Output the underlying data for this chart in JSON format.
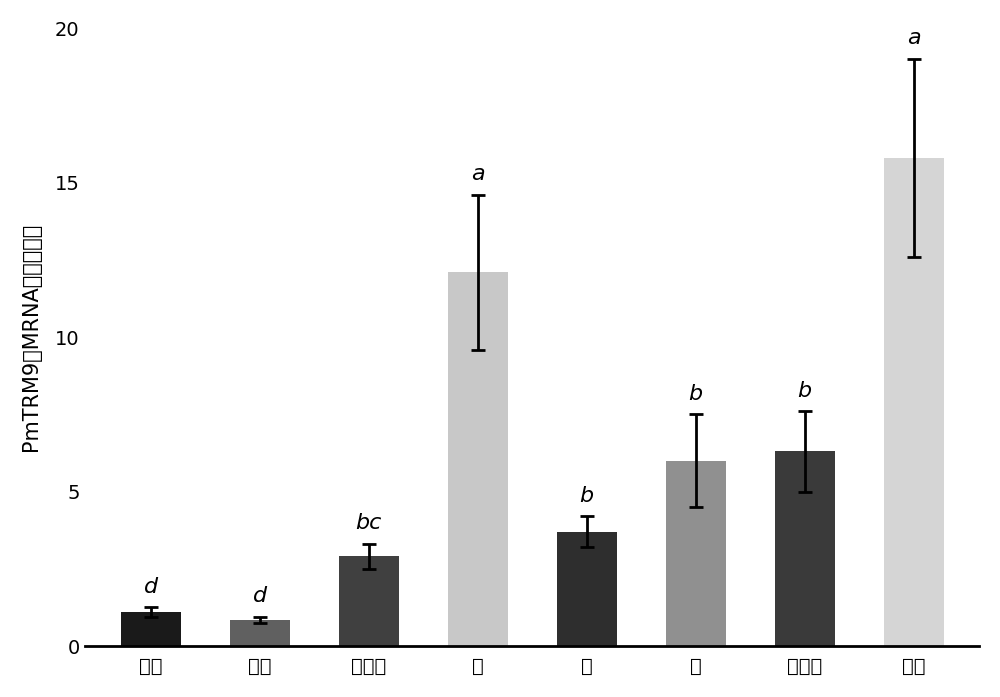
{
  "categories": [
    "肌肉",
    "心脏",
    "肝胰腺",
    "脑",
    "胃",
    "鳞",
    "血细胞",
    "肠道"
  ],
  "values": [
    1.1,
    0.85,
    2.9,
    12.1,
    3.7,
    6.0,
    6.3,
    15.8
  ],
  "errors": [
    0.15,
    0.1,
    0.4,
    2.5,
    0.5,
    1.5,
    1.3,
    3.2
  ],
  "bar_colors": [
    "#1a1a1a",
    "#606060",
    "#404040",
    "#c8c8c8",
    "#2e2e2e",
    "#909090",
    "#3a3a3a",
    "#d5d5d5"
  ],
  "labels": [
    "d",
    "d",
    "bc",
    "a",
    "b",
    "b",
    "b",
    "a"
  ],
  "ylabel_chars": [
    "P",
    "m",
    "T",
    "R",
    "M",
    "9",
    "的",
    "M",
    "R",
    "N",
    "A",
    "相",
    "对",
    "表",
    "达",
    "量"
  ],
  "ylabel": "PmTRM9的MRNA相对表达量",
  "ylim": [
    0,
    20
  ],
  "yticks": [
    0,
    5,
    10,
    15,
    20
  ],
  "label_fontsize": 15,
  "tick_fontsize": 14,
  "annot_fontsize": 16,
  "bar_width": 0.55,
  "capsize": 5,
  "elinewidth": 2.0,
  "ecapthick": 2.0
}
